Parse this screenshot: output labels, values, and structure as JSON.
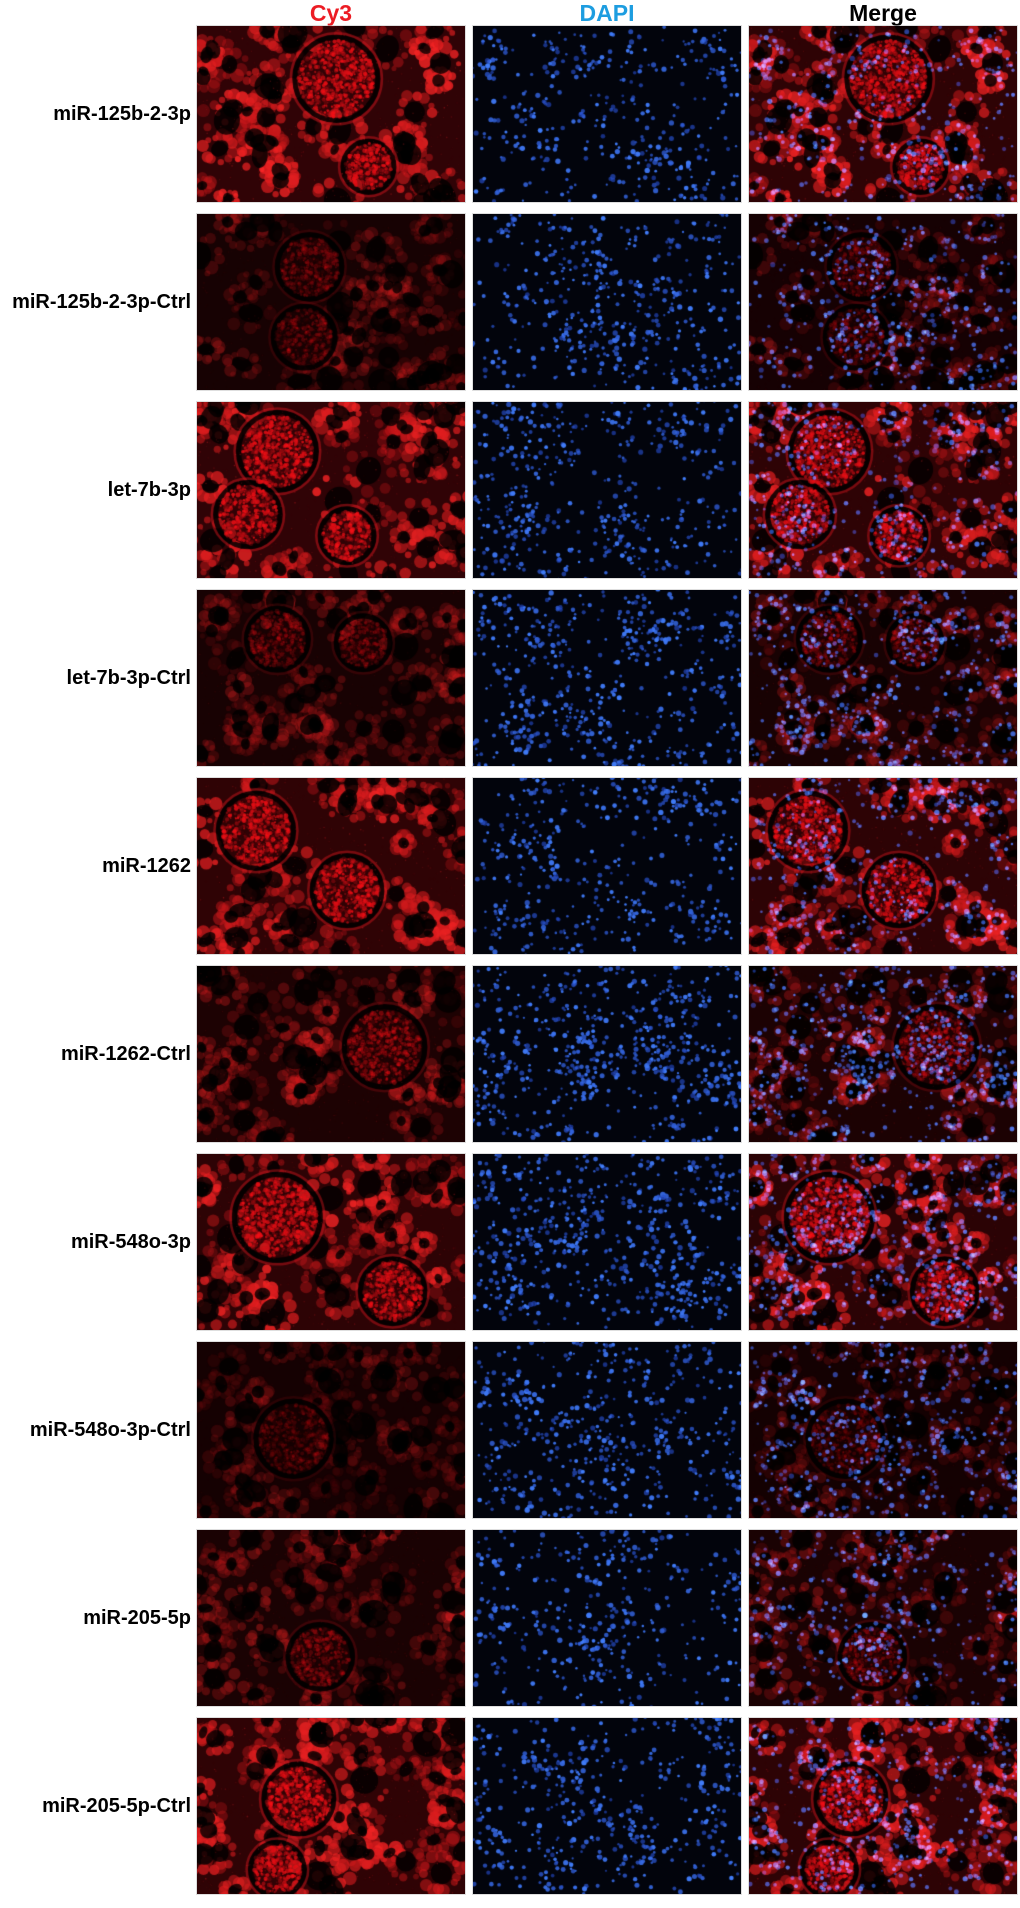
{
  "columns": [
    {
      "label": "Cy3",
      "color": "#ec1c24"
    },
    {
      "label": "DAPI",
      "color": "#1d9de0"
    },
    {
      "label": "Merge",
      "color": "#000000"
    }
  ],
  "stain_colors": {
    "cy3_signal": "#d7101d",
    "dapi_nuclei": "#2b52c4"
  },
  "rows": [
    {
      "label": "miR-125b-2-3p",
      "cy3_signal": "strong",
      "cy3_intensity": 1.0,
      "dapi_density": 0.42,
      "seed": 11,
      "glomeruli": [
        [
          0.52,
          0.3,
          0.155
        ],
        [
          0.64,
          0.8,
          0.095
        ]
      ]
    },
    {
      "label": "miR-125b-2-3p-Ctrl",
      "cy3_signal": "weak",
      "cy3_intensity": 0.3,
      "dapi_density": 0.52,
      "seed": 22,
      "glomeruli": [
        [
          0.42,
          0.3,
          0.12
        ],
        [
          0.4,
          0.7,
          0.115
        ]
      ]
    },
    {
      "label": "let-7b-3p",
      "cy3_signal": "strong",
      "cy3_intensity": 1.0,
      "dapi_density": 0.5,
      "seed": 33,
      "glomeruli": [
        [
          0.3,
          0.28,
          0.145
        ],
        [
          0.19,
          0.64,
          0.12
        ],
        [
          0.56,
          0.76,
          0.1
        ]
      ]
    },
    {
      "label": "let-7b-3p-Ctrl",
      "cy3_signal": "weak",
      "cy3_intensity": 0.34,
      "dapi_density": 0.62,
      "seed": 44,
      "glomeruli": [
        [
          0.3,
          0.28,
          0.115
        ],
        [
          0.62,
          0.3,
          0.1
        ]
      ]
    },
    {
      "label": "miR-1262",
      "cy3_signal": "strong",
      "cy3_intensity": 0.96,
      "dapi_density": 0.45,
      "seed": 55,
      "glomeruli": [
        [
          0.22,
          0.3,
          0.14
        ],
        [
          0.56,
          0.64,
          0.13
        ]
      ]
    },
    {
      "label": "miR-1262-Ctrl",
      "cy3_signal": "moderate",
      "cy3_intensity": 0.48,
      "dapi_density": 0.8,
      "seed": 66,
      "glomeruli": [
        [
          0.7,
          0.46,
          0.15
        ]
      ]
    },
    {
      "label": "miR-548o-3p",
      "cy3_signal": "strong",
      "cy3_intensity": 0.92,
      "dapi_density": 0.75,
      "seed": 77,
      "glomeruli": [
        [
          0.3,
          0.36,
          0.16
        ],
        [
          0.73,
          0.78,
          0.12
        ]
      ]
    },
    {
      "label": "miR-548o-3p-Ctrl",
      "cy3_signal": "very weak",
      "cy3_intensity": 0.24,
      "dapi_density": 0.6,
      "seed": 88,
      "glomeruli": [
        [
          0.36,
          0.55,
          0.14
        ]
      ]
    },
    {
      "label": "miR-205-5p",
      "cy3_signal": "weak",
      "cy3_intensity": 0.4,
      "dapi_density": 0.5,
      "seed": 99,
      "glomeruli": [
        [
          0.46,
          0.72,
          0.12
        ]
      ]
    },
    {
      "label": "miR-205-5p-Ctrl",
      "cy3_signal": "strong",
      "cy3_intensity": 0.97,
      "dapi_density": 0.55,
      "seed": 110,
      "glomeruli": [
        [
          0.38,
          0.46,
          0.13
        ],
        [
          0.3,
          0.86,
          0.1
        ]
      ]
    }
  ]
}
